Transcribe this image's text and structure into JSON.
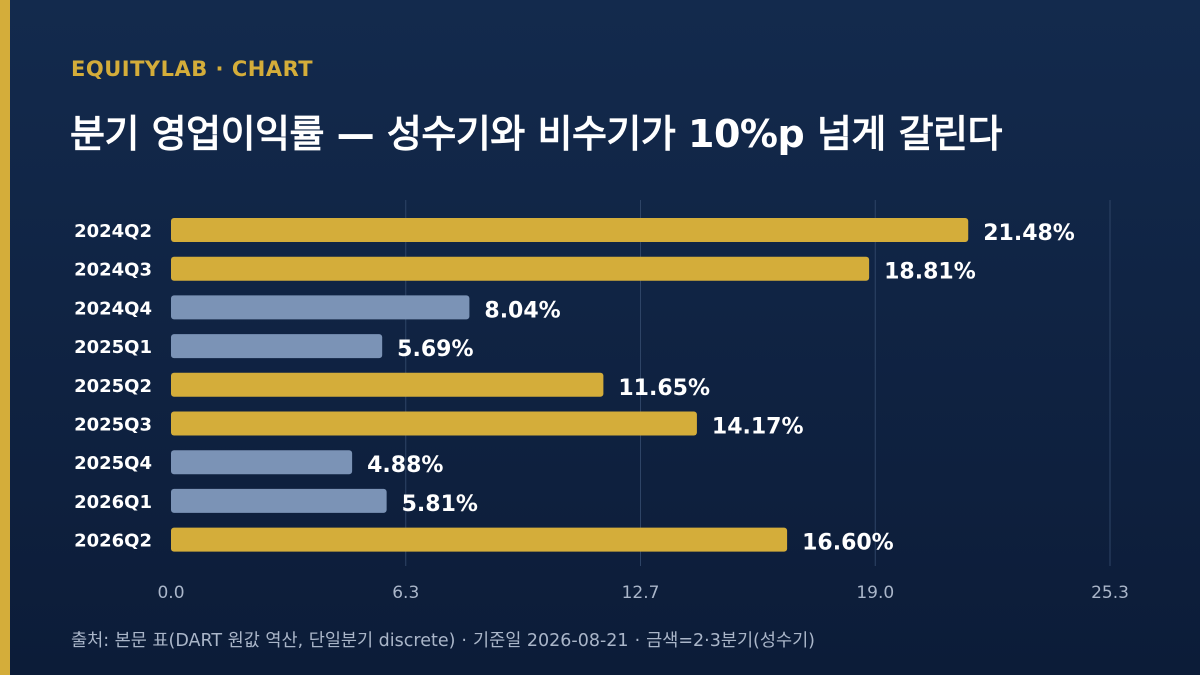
{
  "header": {
    "eyebrow": "EQUITYLAB · CHART",
    "title": "분기 영업이익률 — 성수기와 비수기가 10%p 넘게 갈린다"
  },
  "footer": {
    "source": "출처: 본문 표(DART 원값 역산, 단일분기 discrete)",
    "date": "기준일 2026-08-21",
    "legend_note": "금색=2·3분기(성수기)"
  },
  "colors": {
    "background": "#0f2444",
    "accent": "#d4ad3a",
    "peak_bar": "#d4ad3a",
    "offpeak_bar": "#7b93b6",
    "text": "#ffffff",
    "muted": "#aab6c9",
    "grid": "#2e4466"
  },
  "chart_data": {
    "type": "bar",
    "orientation": "horizontal",
    "categories": [
      "2024Q2",
      "2024Q3",
      "2024Q4",
      "2025Q1",
      "2025Q2",
      "2025Q3",
      "2025Q4",
      "2026Q1",
      "2026Q2"
    ],
    "values": [
      21.48,
      18.81,
      8.04,
      5.69,
      11.65,
      14.17,
      4.88,
      5.81,
      16.6
    ],
    "data_labels": [
      "21.48%",
      "18.81%",
      "8.04%",
      "5.69%",
      "11.65%",
      "14.17%",
      "4.88%",
      "5.81%",
      "16.60%"
    ],
    "peak_season": [
      true,
      true,
      false,
      false,
      true,
      true,
      false,
      false,
      true
    ],
    "xlim": [
      0,
      25.3
    ],
    "x_ticks": [
      "0.0",
      "6.3",
      "12.7",
      "19.0",
      "25.3"
    ],
    "x_tick_values": [
      0,
      6.325,
      12.65,
      18.975,
      25.3
    ],
    "grid": "vertical",
    "title": "분기 영업이익률 — 성수기와 비수기가 10%p 넘게 갈린다",
    "xlabel": "",
    "ylabel": ""
  }
}
